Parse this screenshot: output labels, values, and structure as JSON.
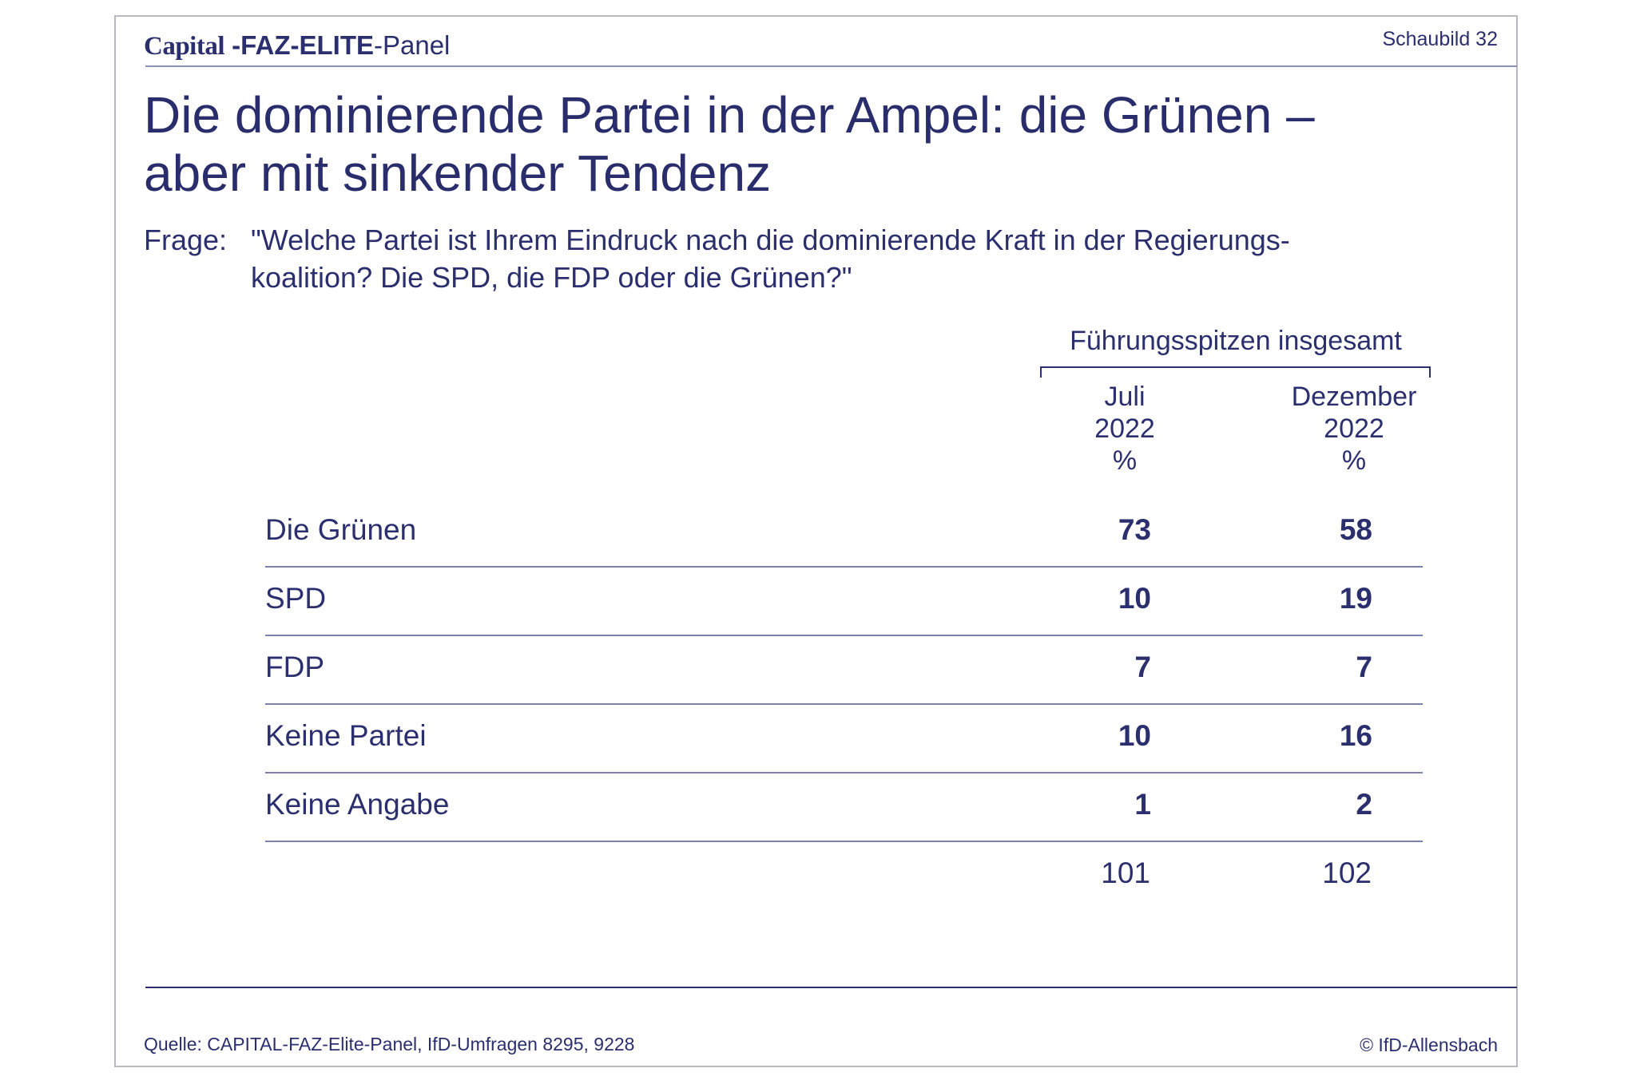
{
  "header": {
    "brand_capital": "Capital",
    "brand_faz": " -FAZ-ELITE",
    "brand_panel": "-Panel",
    "figure_label": "Schaubild 32"
  },
  "title_line1": "Die dominierende Partei in der Ampel: die Grünen –",
  "title_line2": "aber mit sinkender Tendenz",
  "question": {
    "label": "Frage:",
    "line1": "\"Welche Partei ist Ihrem Eindruck nach die dominierende Kraft in der Regierungs-",
    "line2": "koalition? Die SPD, die FDP oder die Grünen?\""
  },
  "table": {
    "group_label": "Führungsspitzen insgesamt",
    "columns": [
      {
        "month": "Juli",
        "year": "2022",
        "unit": "%"
      },
      {
        "month": "Dezember",
        "year": "2022",
        "unit": "%"
      }
    ],
    "rows": [
      {
        "label": "Die Grünen",
        "values": [
          "73",
          "58"
        ]
      },
      {
        "label": "SPD",
        "values": [
          "10",
          "19"
        ]
      },
      {
        "label": "FDP",
        "values": [
          "7",
          "7"
        ]
      },
      {
        "label": "Keine Partei",
        "values": [
          "10",
          "16"
        ]
      },
      {
        "label": "Keine Angabe",
        "values": [
          "1",
          "2"
        ]
      }
    ],
    "totals": [
      "101",
      "102"
    ]
  },
  "footer": {
    "source": "Quelle: CAPITAL-FAZ-Elite-Panel, IfD-Umfragen 8295, 9228",
    "copyright": "© IfD-Allensbach"
  },
  "colors": {
    "text": "#2b2f6e",
    "rule": "#7d82ad",
    "frame": "#b9b9c4"
  }
}
